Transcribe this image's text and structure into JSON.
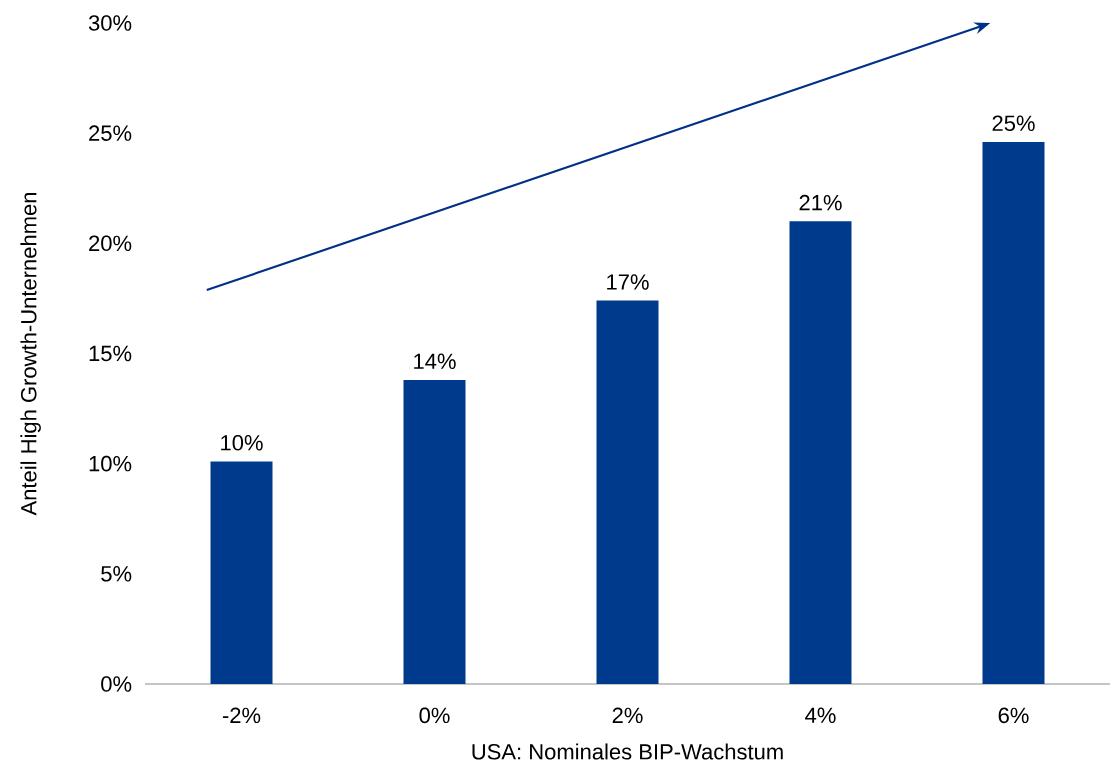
{
  "chart_data": {
    "type": "bar",
    "xlabel": "USA: Nominales BIP-Wachstum",
    "ylabel": "Anteil High Growth-Unternehmen",
    "categories": [
      "-2%",
      "0%",
      "2%",
      "4%",
      "6%"
    ],
    "values": [
      10.1,
      13.8,
      17.4,
      21.0,
      24.6
    ],
    "color": "#003a8c",
    "value_labels": [
      "10%",
      "14%",
      "17%",
      "21%",
      "25%"
    ],
    "ylim": [
      0,
      30
    ],
    "yticks": [
      {
        "value": 0,
        "label": "0%"
      },
      {
        "value": 5,
        "label": "5%"
      },
      {
        "value": 10,
        "label": "10%"
      },
      {
        "value": 15,
        "label": "15%"
      },
      {
        "value": 20,
        "label": "20%"
      },
      {
        "value": 25,
        "label": "25%"
      },
      {
        "value": 30,
        "label": "30%"
      }
    ]
  }
}
